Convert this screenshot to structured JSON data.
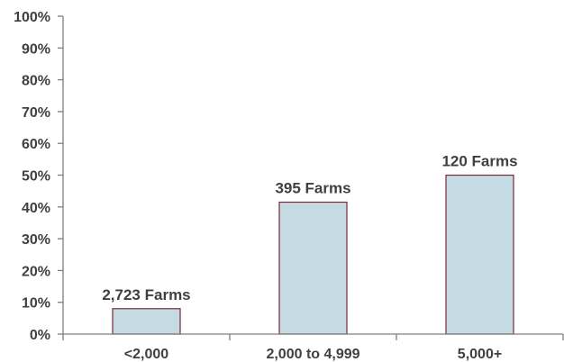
{
  "chart_data": {
    "type": "bar",
    "categories": [
      "<2,000",
      "2,000 to 4,999",
      "5,000+"
    ],
    "values": [
      8,
      41.5,
      50
    ],
    "data_labels": [
      "2,723 Farms",
      "395 Farms",
      "120 Farms"
    ],
    "y_tick_labels": [
      "0%",
      "10%",
      "20%",
      "30%",
      "40%",
      "50%",
      "60%",
      "70%",
      "80%",
      "90%",
      "100%"
    ],
    "ylim": [
      0,
      100
    ],
    "grid": false,
    "legend": "none",
    "colors": {
      "bar_fill": "#c5dbe3",
      "bar_stroke": "#7a2a3a",
      "axis": "#7f7f7f",
      "text": "#404040"
    }
  }
}
